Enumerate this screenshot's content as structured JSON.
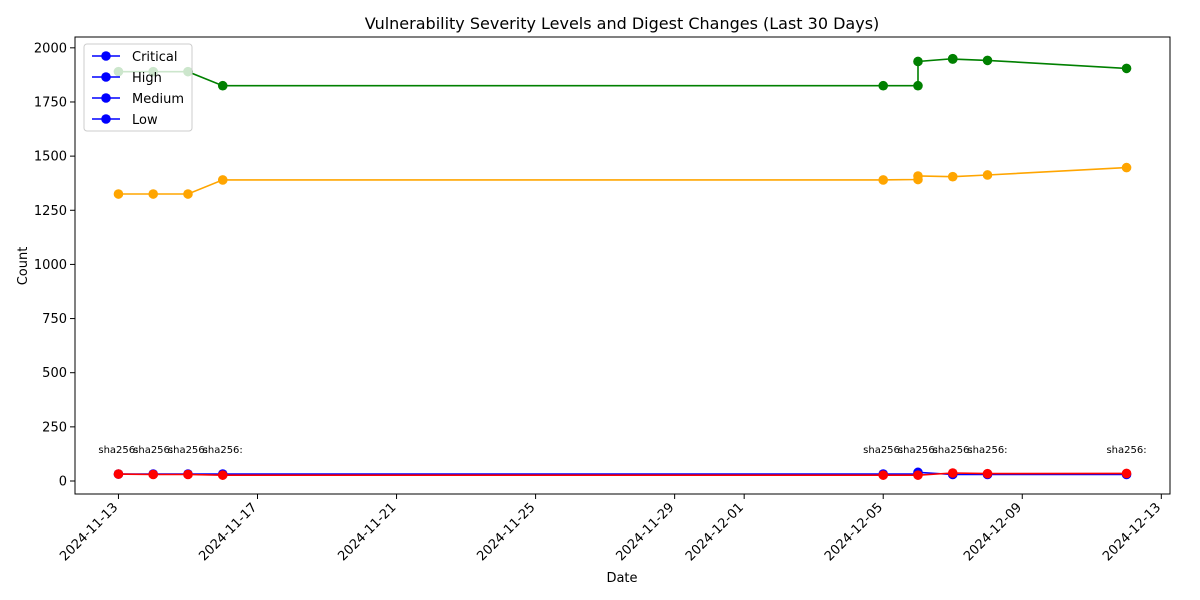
{
  "chart_data": {
    "type": "line",
    "title": "Vulnerability Severity Levels and Digest Changes (Last 30 Days)",
    "xlabel": "Date",
    "ylabel": "Count",
    "x_range": [
      "2024-11-11T18:00",
      "2024-12-13T06:00"
    ],
    "ylim": [
      -60,
      2050
    ],
    "x_ticks": [
      "2024-11-13",
      "2024-11-17",
      "2024-11-21",
      "2024-11-25",
      "2024-11-29",
      "2024-12-01",
      "2024-12-05",
      "2024-12-09",
      "2024-12-13"
    ],
    "y_ticks": [
      0,
      250,
      500,
      750,
      1000,
      1250,
      1500,
      1750,
      2000
    ],
    "legend": {
      "placement": "upper-left",
      "entries": [
        "Critical",
        "High",
        "Medium",
        "Low"
      ],
      "marker_color": "#0000ff"
    },
    "series": [
      {
        "color": "#008000",
        "points": [
          {
            "x": "2024-11-13",
            "y": 1890
          },
          {
            "x": "2024-11-14",
            "y": 1890
          },
          {
            "x": "2024-11-15",
            "y": 1890
          },
          {
            "x": "2024-11-16",
            "y": 1825
          },
          {
            "x": "2024-12-05",
            "y": 1825
          },
          {
            "x": "2024-12-06",
            "y": 1825
          },
          {
            "x": "2024-12-06",
            "y": 1937
          },
          {
            "x": "2024-12-07",
            "y": 1950
          },
          {
            "x": "2024-12-07",
            "y": 1948
          },
          {
            "x": "2024-12-08",
            "y": 1942
          },
          {
            "x": "2024-12-12",
            "y": 1905
          }
        ]
      },
      {
        "color": "#ffa500",
        "points": [
          {
            "x": "2024-11-13",
            "y": 1325
          },
          {
            "x": "2024-11-14",
            "y": 1325
          },
          {
            "x": "2024-11-15",
            "y": 1325
          },
          {
            "x": "2024-11-16",
            "y": 1390
          },
          {
            "x": "2024-12-05",
            "y": 1390
          },
          {
            "x": "2024-12-06",
            "y": 1392
          },
          {
            "x": "2024-12-06",
            "y": 1408
          },
          {
            "x": "2024-12-07",
            "y": 1405
          },
          {
            "x": "2024-12-08",
            "y": 1413
          },
          {
            "x": "2024-12-12",
            "y": 1447
          }
        ]
      },
      {
        "color": "#0000ff",
        "points": [
          {
            "x": "2024-11-13",
            "y": 32
          },
          {
            "x": "2024-11-14",
            "y": 32
          },
          {
            "x": "2024-11-15",
            "y": 32
          },
          {
            "x": "2024-11-16",
            "y": 32
          },
          {
            "x": "2024-12-05",
            "y": 32
          },
          {
            "x": "2024-12-06",
            "y": 32
          },
          {
            "x": "2024-12-06",
            "y": 40
          },
          {
            "x": "2024-12-07",
            "y": 30
          },
          {
            "x": "2024-12-08",
            "y": 30
          },
          {
            "x": "2024-12-12",
            "y": 30
          }
        ]
      },
      {
        "color": "#ff0000",
        "points": [
          {
            "x": "2024-11-13",
            "y": 32
          },
          {
            "x": "2024-11-14",
            "y": 30
          },
          {
            "x": "2024-11-15",
            "y": 30
          },
          {
            "x": "2024-11-16",
            "y": 27
          },
          {
            "x": "2024-12-05",
            "y": 27
          },
          {
            "x": "2024-12-06",
            "y": 27
          },
          {
            "x": "2024-12-07",
            "y": 37
          },
          {
            "x": "2024-12-08",
            "y": 34
          },
          {
            "x": "2024-12-12",
            "y": 35
          }
        ]
      }
    ],
    "annotations": [
      {
        "x": "2024-11-13",
        "text": "sha256:"
      },
      {
        "x": "2024-11-14",
        "text": "sha256:"
      },
      {
        "x": "2024-11-15",
        "text": "sha256:"
      },
      {
        "x": "2024-11-16",
        "text": "sha256:"
      },
      {
        "x": "2024-12-05",
        "text": "sha256:"
      },
      {
        "x": "2024-12-06",
        "text": "sha256:"
      },
      {
        "x": "2024-12-07",
        "text": "sha256:"
      },
      {
        "x": "2024-12-08",
        "text": "sha256:"
      },
      {
        "x": "2024-12-12",
        "text": "sha256:"
      }
    ],
    "grid": false
  }
}
